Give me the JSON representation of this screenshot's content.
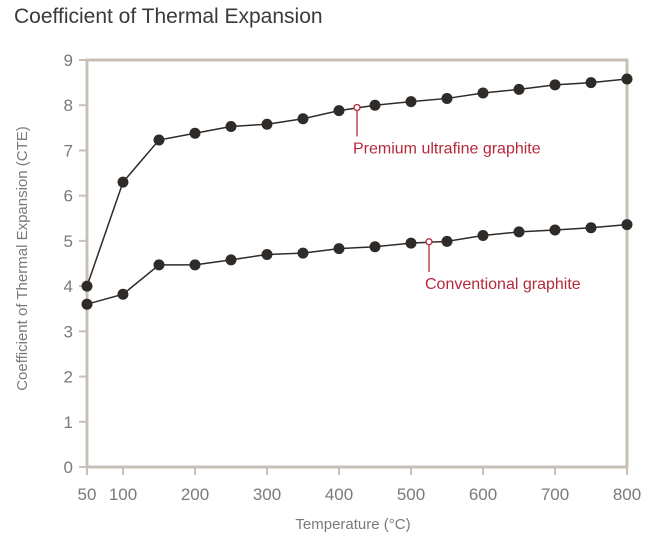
{
  "chart_data": {
    "type": "line",
    "title": "Coefficient of Thermal Expansion",
    "xlabel": "Temperature (°C)",
    "ylabel": "Coefficient of Thermal Expansion (CTE)",
    "xlim": [
      50,
      800
    ],
    "ylim": [
      0,
      9
    ],
    "xticks": [
      50,
      100,
      200,
      300,
      400,
      500,
      600,
      700,
      800
    ],
    "yticks": [
      0,
      1,
      2,
      3,
      4,
      5,
      6,
      7,
      8,
      9
    ],
    "grid": false,
    "colors": {
      "frame": "#c8c0b8",
      "line": "#2e2b28",
      "marker": "#2e2b28",
      "annotation": "#b5293a",
      "tick_text": "#7a7a7a",
      "title_text": "#3a3a3a"
    },
    "series": [
      {
        "x": [
          50,
          100,
          150,
          200,
          250,
          300,
          350,
          400,
          450,
          500,
          550,
          600,
          650,
          700,
          750,
          800
        ],
        "y": [
          4.0,
          6.3,
          7.23,
          7.38,
          7.53,
          7.58,
          7.7,
          7.88,
          8.0,
          8.08,
          8.15,
          8.27,
          8.35,
          8.45,
          8.5,
          8.58
        ]
      },
      {
        "x": [
          50,
          100,
          150,
          200,
          250,
          300,
          350,
          400,
          450,
          500,
          550,
          600,
          650,
          700,
          750,
          800
        ],
        "y": [
          3.6,
          3.82,
          4.47,
          4.47,
          4.58,
          4.7,
          4.73,
          4.83,
          4.87,
          4.95,
          4.99,
          5.12,
          5.2,
          5.24,
          5.29,
          5.36
        ]
      }
    ],
    "annotations": [
      {
        "text": "Premium ultrafine graphite",
        "x": 425,
        "y": 7.95,
        "label_y": 7.0
      },
      {
        "text": "Conventional graphite",
        "x": 525,
        "y": 4.98,
        "label_y": 4.0
      }
    ]
  }
}
